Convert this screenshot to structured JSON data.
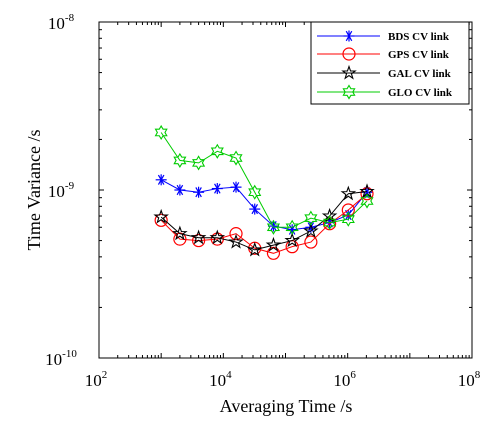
{
  "chart_data": {
    "type": "line",
    "title": "",
    "xlabel": "Averaging Time /s",
    "ylabel": "Time Variance /s",
    "xscale": "log",
    "yscale": "log",
    "xlim": [
      100,
      100000000
    ],
    "ylim": [
      1e-10,
      1e-08
    ],
    "x_ticks": [
      {
        "value": 100,
        "base": "10",
        "exp": "2"
      },
      {
        "value": 10000,
        "base": "10",
        "exp": "4"
      },
      {
        "value": 1000000,
        "base": "10",
        "exp": "6"
      },
      {
        "value": 100000000,
        "base": "10",
        "exp": "8"
      }
    ],
    "y_ticks": [
      {
        "value": 1e-10,
        "base": "10",
        "exp": "-10"
      },
      {
        "value": 1e-09,
        "base": "10",
        "exp": "-9"
      },
      {
        "value": 1e-08,
        "base": "10",
        "exp": "-8"
      }
    ],
    "grid": false,
    "legend_position": "top-right",
    "series": [
      {
        "name": "BDS CV link",
        "color": "#0000ff",
        "marker": "asterisk",
        "x": [
          1000,
          2000,
          4000,
          8000,
          16000,
          32000,
          64000,
          128000,
          256000,
          512000,
          1024000,
          2048000
        ],
        "y": [
          1.15e-09,
          1e-09,
          9.7e-10,
          1.02e-09,
          1.04e-09,
          7.7e-10,
          6.1e-10,
          5.8e-10,
          6e-10,
          6.4e-10,
          7.1e-10,
          9.7e-10
        ]
      },
      {
        "name": "GPS CV link",
        "color": "#ff0000",
        "marker": "circle",
        "x": [
          1000,
          2000,
          4000,
          8000,
          16000,
          32000,
          64000,
          128000,
          256000,
          512000,
          1024000,
          2048000
        ],
        "y": [
          6.6e-10,
          5.1e-10,
          5e-10,
          5.1e-10,
          5.5e-10,
          4.5e-10,
          4.2e-10,
          4.6e-10,
          4.9e-10,
          6.3e-10,
          7.6e-10,
          9.5e-10
        ]
      },
      {
        "name": "GAL CV link",
        "color": "#000000",
        "marker": "star",
        "x": [
          1000,
          2000,
          4000,
          8000,
          16000,
          32000,
          64000,
          128000,
          256000,
          512000,
          1024000,
          2048000
        ],
        "y": [
          6.9e-10,
          5.5e-10,
          5.2e-10,
          5.2e-10,
          4.9e-10,
          4.4e-10,
          4.7e-10,
          5e-10,
          5.7e-10,
          7e-10,
          9.5e-10,
          9.8e-10
        ]
      },
      {
        "name": "GLO CV link",
        "color": "#00cc00",
        "marker": "hexagram",
        "x": [
          1000,
          2000,
          4000,
          8000,
          16000,
          32000,
          64000,
          128000,
          256000,
          512000,
          1024000,
          2048000
        ],
        "y": [
          2.2e-09,
          1.5e-09,
          1.45e-09,
          1.7e-09,
          1.55e-09,
          9.7e-10,
          6e-10,
          6e-10,
          6.8e-10,
          6.4e-10,
          6.7e-10,
          8.6e-10
        ]
      }
    ]
  }
}
